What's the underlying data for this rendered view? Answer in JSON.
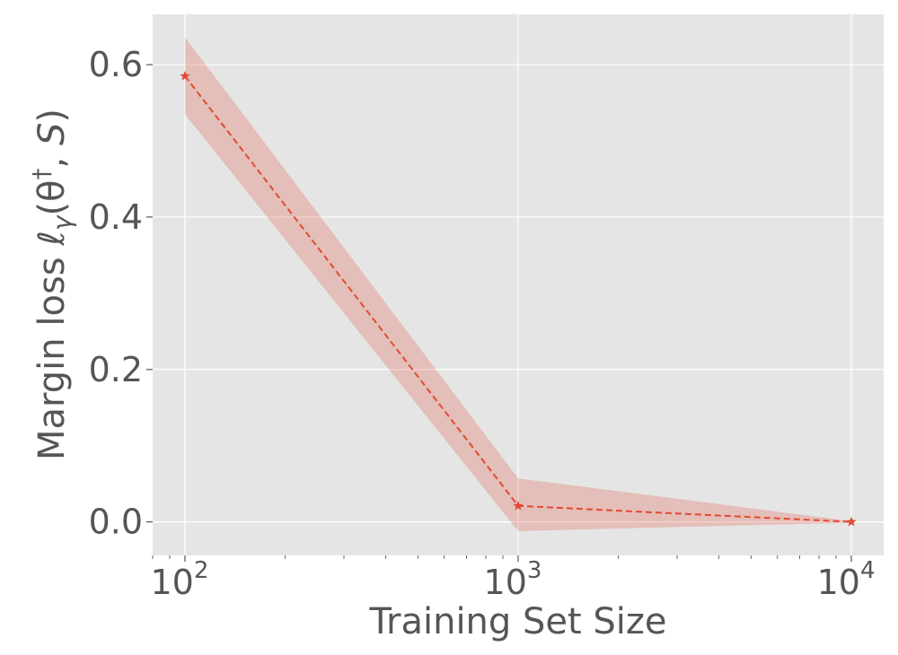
{
  "chart_data": {
    "type": "line",
    "x_scale": "log",
    "xlim": [
      80,
      12500
    ],
    "ylim": [
      -0.044,
      0.666
    ],
    "xlabel": "Training Set Size",
    "ylabel": "Margin loss ℓγ(θ†, S)",
    "ylabel_parts": {
      "prefix": "Margin loss ",
      "ell": "ℓ",
      "gamma": "γ",
      "open": "(θ",
      "dagger": "†",
      "rest": ", ",
      "s": "S",
      "close": ")"
    },
    "grid": true,
    "x_ticks": [
      {
        "value": 100,
        "base": "10",
        "exp": "2"
      },
      {
        "value": 1000,
        "base": "10",
        "exp": "3"
      },
      {
        "value": 10000,
        "base": "10",
        "exp": "4"
      }
    ],
    "y_ticks": [
      {
        "value": 0.0,
        "label": "0.0"
      },
      {
        "value": 0.2,
        "label": "0.2"
      },
      {
        "value": 0.4,
        "label": "0.4"
      },
      {
        "value": 0.6,
        "label": "0.6"
      }
    ],
    "series": [
      {
        "x": [
          100,
          1000,
          10000
        ],
        "y": [
          0.585,
          0.021,
          0.0
        ],
        "y_lower": [
          0.535,
          -0.012,
          -0.001
        ],
        "y_upper": [
          0.636,
          0.057,
          0.001
        ],
        "color": "#E24A33",
        "band_color": "#E24A33",
        "line_style": "dashed",
        "marker": "star"
      }
    ]
  },
  "colors": {
    "axes_bg": "#E5E5E5",
    "grid": "#FFFFFF",
    "text": "#555555"
  }
}
